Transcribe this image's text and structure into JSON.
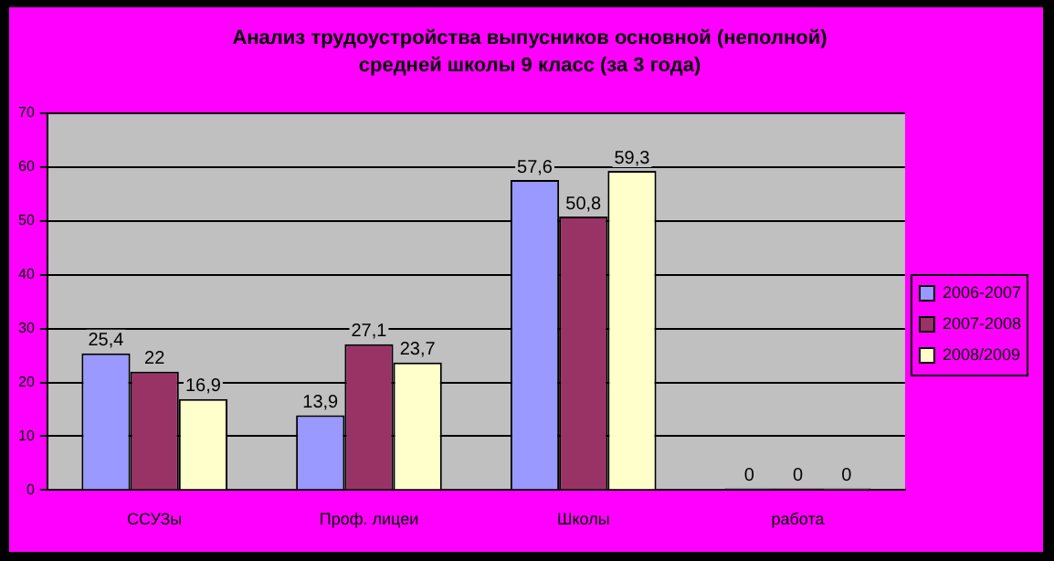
{
  "chart_data": {
    "type": "bar",
    "title": "Анализ трудоустройства выпусников основной (неполной) средней школы 9 класс (за 3 года)",
    "categories": [
      "ССУЗы",
      "Проф. лицеи",
      "Школы",
      "работа"
    ],
    "series": [
      {
        "name": "2006-2007",
        "color": "#9999ff",
        "values": [
          25.4,
          13.9,
          57.6,
          0
        ],
        "value_labels": [
          "25,4",
          "13,9",
          "57,6",
          "0"
        ]
      },
      {
        "name": "2007-2008",
        "color": "#993366",
        "values": [
          22,
          27.1,
          50.8,
          0
        ],
        "value_labels": [
          "22",
          "27,1",
          "50,8",
          "0"
        ]
      },
      {
        "name": "2008/2009",
        "color": "#ffffcc",
        "values": [
          16.9,
          23.7,
          59.3,
          0
        ],
        "value_labels": [
          "16,9",
          "23,7",
          "59,3",
          "0"
        ]
      }
    ],
    "ylim": [
      0,
      70
    ],
    "yticks": [
      0,
      10,
      20,
      30,
      40,
      50,
      60,
      70
    ],
    "grid": "y",
    "legend": "right"
  }
}
